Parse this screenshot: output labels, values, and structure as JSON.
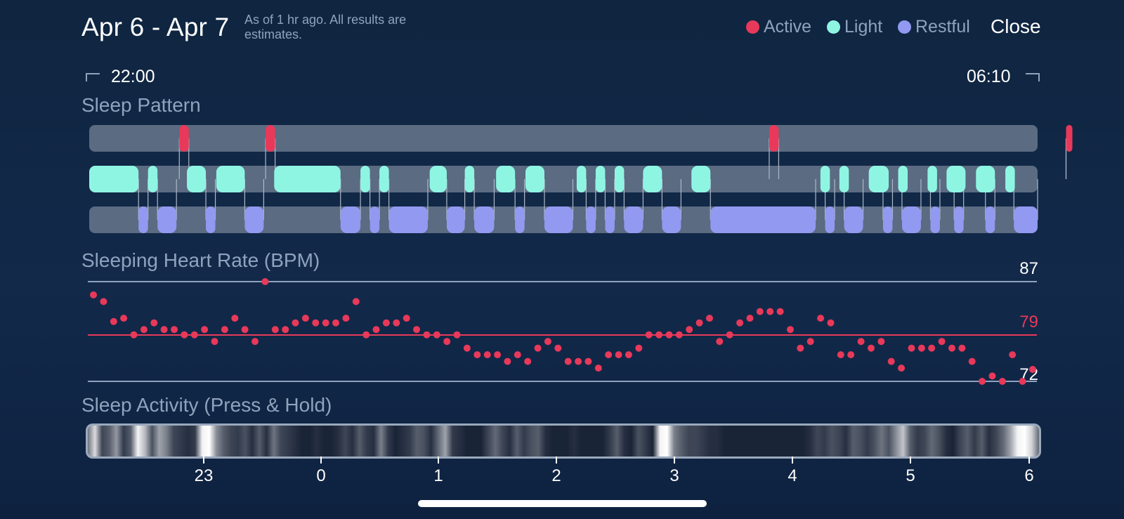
{
  "header": {
    "date_range": "Apr 6 - Apr 7",
    "note": "As of 1 hr ago. All results are estimates.",
    "close_label": "Close"
  },
  "legend": [
    {
      "label": "Active",
      "color": "#e8395a"
    },
    {
      "label": "Light",
      "color": "#8ff5e3"
    },
    {
      "label": "Restful",
      "color": "#9199f0"
    }
  ],
  "timeline": {
    "start": "22:00",
    "end": "06:10"
  },
  "sleep_pattern": {
    "title": "Sleep Pattern",
    "colors": {
      "active": "#e8395a",
      "light": "#8ff5e3",
      "restful": "#9199f0",
      "track": "#5a6b82"
    },
    "segments": {
      "active": [
        [
          0.095,
          0.105
        ],
        [
          0.186,
          0.196
        ],
        [
          0.717,
          0.727
        ],
        [
          1.054,
          1.064
        ]
      ],
      "light": [
        [
          0.0,
          0.052
        ],
        [
          0.062,
          0.072
        ],
        [
          0.103,
          0.123
        ],
        [
          0.134,
          0.164
        ],
        [
          0.195,
          0.265
        ],
        [
          0.286,
          0.296
        ],
        [
          0.306,
          0.316
        ],
        [
          0.359,
          0.377
        ],
        [
          0.396,
          0.406
        ],
        [
          0.429,
          0.449
        ],
        [
          0.46,
          0.48
        ],
        [
          0.514,
          0.524
        ],
        [
          0.534,
          0.544
        ],
        [
          0.554,
          0.564
        ],
        [
          0.584,
          0.604
        ],
        [
          0.635,
          0.655
        ],
        [
          0.771,
          0.781
        ],
        [
          0.791,
          0.801
        ],
        [
          0.822,
          0.843
        ],
        [
          0.853,
          0.863
        ],
        [
          0.884,
          0.894
        ],
        [
          0.904,
          0.924
        ],
        [
          0.935,
          0.955
        ],
        [
          0.966,
          0.976
        ]
      ],
      "restful": [
        [
          0.052,
          0.062
        ],
        [
          0.072,
          0.092
        ],
        [
          0.123,
          0.133
        ],
        [
          0.164,
          0.184
        ],
        [
          0.265,
          0.286
        ],
        [
          0.296,
          0.306
        ],
        [
          0.316,
          0.357
        ],
        [
          0.377,
          0.396
        ],
        [
          0.406,
          0.427
        ],
        [
          0.449,
          0.459
        ],
        [
          0.48,
          0.51
        ],
        [
          0.524,
          0.534
        ],
        [
          0.544,
          0.554
        ],
        [
          0.564,
          0.584
        ],
        [
          0.604,
          0.624
        ],
        [
          0.655,
          0.766
        ],
        [
          0.776,
          0.786
        ],
        [
          0.796,
          0.816
        ],
        [
          0.837,
          0.847
        ],
        [
          0.857,
          0.877
        ],
        [
          0.887,
          0.897
        ],
        [
          0.912,
          0.922
        ],
        [
          0.945,
          0.955
        ],
        [
          0.975,
          1.0
        ]
      ]
    }
  },
  "heart_rate": {
    "title": "Sleeping Heart Rate (BPM)",
    "max_label": "87",
    "avg_label": "79",
    "min_label": "72"
  },
  "chart_data": {
    "type": "scatter",
    "title": "Sleeping Heart Rate (BPM)",
    "xlabel": "",
    "ylabel": "",
    "ylim": [
      72,
      87
    ],
    "reference_lines": {
      "max": 87,
      "avg": 79,
      "min": 72
    },
    "values": [
      85.0,
      84.0,
      81.0,
      81.5,
      79.0,
      79.8,
      80.8,
      79.8,
      79.8,
      79.0,
      79.0,
      79.8,
      78.0,
      79.8,
      81.5,
      79.8,
      78.0,
      87.0,
      79.8,
      79.8,
      80.8,
      81.5,
      80.8,
      80.8,
      80.8,
      81.5,
      84.0,
      79.0,
      79.8,
      80.8,
      80.8,
      81.5,
      79.8,
      79.0,
      79.0,
      78.0,
      79.0,
      77.0,
      76.0,
      76.0,
      76.0,
      75.0,
      76.0,
      75.0,
      77.0,
      78.0,
      77.0,
      75.0,
      75.0,
      75.0,
      74.0,
      76.0,
      76.0,
      76.0,
      77.0,
      79.0,
      79.0,
      79.0,
      79.0,
      79.8,
      80.8,
      81.5,
      78.0,
      79.0,
      80.8,
      81.5,
      82.5,
      82.5,
      82.5,
      79.8,
      77.0,
      78.0,
      81.5,
      80.8,
      76.0,
      76.0,
      78.0,
      77.0,
      78.0,
      75.0,
      74.0,
      77.0,
      77.0,
      77.0,
      78.0,
      77.0,
      77.0,
      75.0,
      72.0,
      72.8,
      72.0,
      76.0,
      72.0,
      73.8
    ]
  },
  "sleep_activity": {
    "title": "Sleep Activity (Press & Hold)",
    "hour_ticks": [
      "23",
      "0",
      "1",
      "2",
      "3",
      "4",
      "5",
      "6"
    ],
    "intensity": [
      0.4,
      0.85,
      0.2,
      0.3,
      0.55,
      0.15,
      0.3,
      0.95,
      0.7,
      0.25,
      0.6,
      0.45,
      0.2,
      0.15,
      0.1,
      0.15,
      0.95,
      1.0,
      0.5,
      0.3,
      0.2,
      0.15,
      0.25,
      0.1,
      0.3,
      0.1,
      0.4,
      0.2,
      0.15,
      0.1,
      0.05,
      0.05,
      0.1,
      0.05,
      0.05,
      0.1,
      0.2,
      0.1,
      0.3,
      0.15,
      0.1,
      0.45,
      0.15,
      0.05,
      0.1,
      0.15,
      0.3,
      0.25,
      0.1,
      0.35,
      0.6,
      0.15,
      0.1,
      0.05,
      0.05,
      0.05,
      0.2,
      0.35,
      0.2,
      0.1,
      0.3,
      0.15,
      0.25,
      0.3,
      0.1,
      0.05,
      0.05,
      0.05,
      0.1,
      0.05,
      0.05,
      0.05,
      0.05,
      0.15,
      0.3,
      0.1,
      0.05,
      0.25,
      0.15,
      0.05,
      0.95,
      1.0,
      0.45,
      0.3,
      0.2,
      0.2,
      0.15,
      0.1,
      0.1,
      0.05,
      0.05,
      0.05,
      0.05,
      0.05,
      0.05,
      0.05,
      0.05,
      0.05,
      0.05,
      0.05,
      0.05,
      0.1,
      0.2,
      0.15,
      0.25,
      0.2,
      0.1,
      0.3,
      0.25,
      0.15,
      0.25,
      0.4,
      0.25,
      0.5,
      0.75,
      0.3,
      0.15,
      0.2,
      0.35,
      0.25,
      0.1,
      0.05,
      0.2,
      0.3,
      0.15,
      0.3,
      0.1,
      0.2,
      0.35,
      0.6,
      0.95,
      1.0,
      0.8,
      0.35
    ]
  }
}
